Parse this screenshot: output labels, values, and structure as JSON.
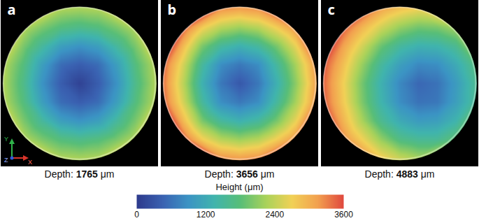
{
  "chart_data": {
    "type": "heatmap_panels",
    "depth_label": "Depth:",
    "depth_unit": "μm",
    "axis_triad": [
      "X",
      "Y",
      "Z"
    ],
    "cell_x": [
      -4,
      -3,
      -2,
      -1,
      0,
      1,
      2,
      3,
      4
    ],
    "cell_y": [
      4,
      3,
      2,
      1,
      0,
      -1,
      -2,
      -3,
      -4
    ],
    "colorbar": {
      "label": "Height (μm)",
      "range": [
        0,
        3600
      ],
      "ticks": [
        0,
        1200,
        2400,
        3600
      ]
    },
    "panels": [
      {
        "label": "a",
        "depth": 1765,
        "heights": [
          [
            null,
            null,
            null,
            2300,
            2250,
            2300,
            null,
            null,
            null
          ],
          [
            null,
            2350,
            2000,
            1750,
            1650,
            1750,
            2000,
            2350,
            null
          ],
          [
            null,
            2000,
            1500,
            1050,
            900,
            1050,
            1500,
            2000,
            null
          ],
          [
            2300,
            1750,
            1050,
            550,
            400,
            550,
            1050,
            1750,
            2300
          ],
          [
            2250,
            1650,
            900,
            400,
            100,
            400,
            900,
            1650,
            2250
          ],
          [
            2300,
            1750,
            1050,
            550,
            400,
            550,
            1050,
            1750,
            2300
          ],
          [
            null,
            2000,
            1500,
            1050,
            900,
            1050,
            1500,
            2000,
            null
          ],
          [
            null,
            2350,
            2000,
            1750,
            1650,
            1750,
            2000,
            2350,
            null
          ],
          [
            null,
            null,
            null,
            2300,
            2250,
            2300,
            null,
            null,
            null
          ]
        ]
      },
      {
        "label": "b",
        "depth": 3656,
        "heights": [
          [
            null,
            null,
            null,
            3250,
            3150,
            3250,
            null,
            null,
            null
          ],
          [
            null,
            3500,
            2750,
            2350,
            2200,
            2350,
            2750,
            3250,
            null
          ],
          [
            null,
            2900,
            2000,
            1500,
            1300,
            1500,
            2000,
            2650,
            null
          ],
          [
            3400,
            2500,
            1500,
            850,
            650,
            850,
            1500,
            2250,
            3150
          ],
          [
            3300,
            2350,
            1300,
            650,
            350,
            650,
            1300,
            2100,
            3050
          ],
          [
            3400,
            2500,
            1500,
            850,
            650,
            850,
            1500,
            2250,
            3150
          ],
          [
            null,
            2900,
            2000,
            1500,
            1300,
            1500,
            2000,
            2650,
            null
          ],
          [
            null,
            3500,
            2750,
            2350,
            2200,
            2350,
            2750,
            3250,
            null
          ],
          [
            null,
            null,
            null,
            3250,
            3150,
            3250,
            null,
            null,
            null
          ]
        ]
      },
      {
        "label": "c",
        "depth": 4883,
        "heights": [
          [
            null,
            null,
            null,
            3100,
            2850,
            2700,
            null,
            null,
            null
          ],
          [
            null,
            3500,
            2950,
            2500,
            2150,
            1950,
            2000,
            2250,
            null
          ],
          [
            null,
            3100,
            2500,
            1900,
            1500,
            1300,
            1350,
            1600,
            null
          ],
          [
            3500,
            2850,
            2150,
            1500,
            1050,
            800,
            850,
            1200,
            1700
          ],
          [
            3400,
            2700,
            1950,
            1300,
            800,
            500,
            600,
            1000,
            1550
          ],
          [
            3450,
            2750,
            2000,
            1350,
            850,
            600,
            650,
            1050,
            1550
          ],
          [
            null,
            2950,
            2250,
            1600,
            1200,
            1000,
            1050,
            1350,
            null
          ],
          [
            null,
            3250,
            2700,
            2150,
            1700,
            1550,
            1550,
            1850,
            null
          ],
          [
            null,
            null,
            null,
            2750,
            2450,
            2250,
            null,
            null,
            null
          ]
        ]
      }
    ]
  }
}
